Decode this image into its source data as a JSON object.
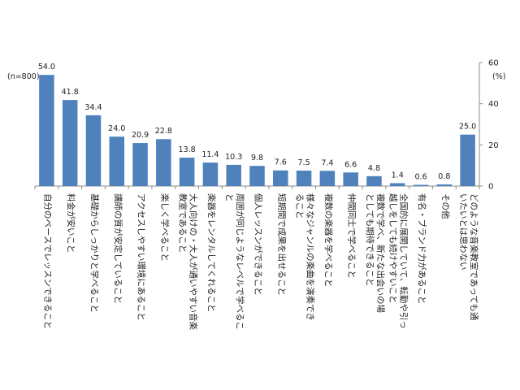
{
  "chart_data": {
    "type": "bar",
    "sample_note": "(n=800)",
    "unit": "(%)",
    "ylim": [
      0,
      60
    ],
    "yticks": [
      0,
      20,
      40,
      60
    ],
    "y_axis_side": "right",
    "grid": false,
    "bar_color": "#4F81BD",
    "categories": [
      "自分のペースでレッスンできること",
      "料金が安いこと",
      "基礎からしっかりと学べること",
      "講師の質が安定していること",
      "アクセスしやすい環境にあること",
      "楽しく学べること",
      "大人向けの・大人が通いやすい音楽教室であること",
      "楽器をレンタルしてくれること",
      "周囲が同じようなレベルで学べること",
      "個人レッスンができること",
      "短期間で成果を出せること",
      "様々なジャンルの楽曲を演奏できること",
      "複数の楽器を学べること",
      "仲間同士で学べること",
      "複数で学べ、新たな出会いの場としても期待できること",
      "全国的に展開していて、転勤や引っ越しをしても続けやすいこと",
      "有名・ブランド力があること",
      "その他",
      "どのような音楽教室であっても通いたいとは思わない"
    ],
    "label_lines": [
      [
        "自分のペースでレッスンできること"
      ],
      [
        "料金が安いこと"
      ],
      [
        "基礎からしっかりと学べること"
      ],
      [
        "講師の質が安定していること"
      ],
      [
        "アクセスしやすい環境にあること"
      ],
      [
        "楽しく学べること"
      ],
      [
        "大人向けの・大人が通いやすい音楽",
        "教室であること"
      ],
      [
        "楽器をレンタルしてくれること"
      ],
      [
        "周囲が同じようなレベルで学べるこ",
        "と"
      ],
      [
        "個人レッスンができること"
      ],
      [
        "短期間で成果を出せること"
      ],
      [
        "様々なジャンルの楽曲を演奏でき",
        "ること"
      ],
      [
        "複数の楽器を学べること"
      ],
      [
        "仲間同士で学べること"
      ],
      [
        "複数で学べ、新たな出会いの場",
        "としても期待できること"
      ],
      [
        "全国的に展開していて、転勤や引っ",
        "越しをしても続けやすいこと"
      ],
      [
        "有名・ブランド力があること"
      ],
      [
        "その他"
      ],
      [
        "どのような音楽教室であっても通",
        "いたいとは思わない"
      ]
    ],
    "values": [
      54.0,
      41.8,
      34.4,
      24.0,
      20.9,
      22.8,
      13.8,
      11.4,
      10.3,
      9.8,
      7.6,
      7.5,
      7.4,
      6.6,
      4.8,
      1.4,
      0.6,
      0.8,
      25.0
    ],
    "value_labels": [
      "54.0",
      "41.8",
      "34.4",
      "24.0",
      "20.9",
      "22.8",
      "13.8",
      "11.4",
      "10.3",
      "9.8",
      "7.6",
      "7.5",
      "7.4",
      "6.6",
      "4.8",
      "1.4",
      "0.6",
      "0.8",
      "25.0"
    ],
    "tick_labels": [
      "0",
      "20",
      "40",
      "60"
    ]
  }
}
